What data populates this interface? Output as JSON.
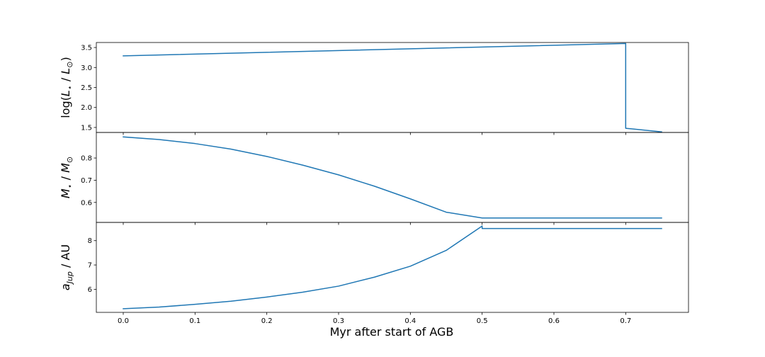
{
  "figure": {
    "xlabel": "Myr after start of AGB",
    "line_color": "#1f77b4"
  },
  "chart_data": [
    {
      "type": "line",
      "ylabel_parts": [
        "log(",
        "L",
        "⋆",
        " / ",
        "L",
        "⊙",
        ")"
      ],
      "xlim": [
        -0.0375,
        0.7875
      ],
      "ylim": [
        1.375,
        3.625
      ],
      "yticks": [
        1.5,
        2.0,
        2.5,
        3.0,
        3.5
      ],
      "ytick_labels": [
        "1.5",
        "2.0",
        "2.5",
        "3.0",
        "3.5"
      ],
      "grid": false,
      "series": [
        {
          "x": [
            0.0,
            0.7,
            0.7,
            0.75
          ],
          "y": [
            3.29,
            3.6,
            1.48,
            1.39
          ]
        }
      ]
    },
    {
      "type": "line",
      "ylabel_parts": [
        "M",
        "⋆",
        " / ",
        "M",
        "⊙"
      ],
      "xlim": [
        -0.0375,
        0.7875
      ],
      "ylim": [
        0.51,
        0.915
      ],
      "yticks": [
        0.6,
        0.7,
        0.8
      ],
      "ytick_labels": [
        "0.6",
        "0.7",
        "0.8"
      ],
      "grid": false,
      "series": [
        {
          "x": [
            0.0,
            0.05,
            0.1,
            0.15,
            0.2,
            0.25,
            0.3,
            0.35,
            0.4,
            0.45,
            0.5,
            0.5,
            0.75
          ],
          "y": [
            0.895,
            0.883,
            0.865,
            0.84,
            0.807,
            0.768,
            0.724,
            0.673,
            0.616,
            0.556,
            0.53,
            0.53,
            0.53
          ]
        }
      ]
    },
    {
      "type": "line",
      "ylabel_parts": [
        "a",
        "Jup",
        " / AU"
      ],
      "xlim": [
        -0.0375,
        0.7875
      ],
      "ylim": [
        5.05,
        8.75
      ],
      "yticks": [
        6,
        7,
        8
      ],
      "ytick_labels": [
        "6",
        "7",
        "8"
      ],
      "xticks": [
        0.0,
        0.1,
        0.2,
        0.3,
        0.4,
        0.5,
        0.6,
        0.7
      ],
      "xtick_labels": [
        "0.0",
        "0.1",
        "0.2",
        "0.3",
        "0.4",
        "0.5",
        "0.6",
        "0.7"
      ],
      "grid": false,
      "series": [
        {
          "x": [
            0.0,
            0.05,
            0.1,
            0.15,
            0.2,
            0.25,
            0.3,
            0.35,
            0.4,
            0.45,
            0.5,
            0.5,
            0.75
          ],
          "y": [
            5.2,
            5.27,
            5.38,
            5.51,
            5.68,
            5.88,
            6.13,
            6.5,
            6.95,
            7.6,
            8.6,
            8.5,
            8.5
          ]
        }
      ]
    }
  ]
}
